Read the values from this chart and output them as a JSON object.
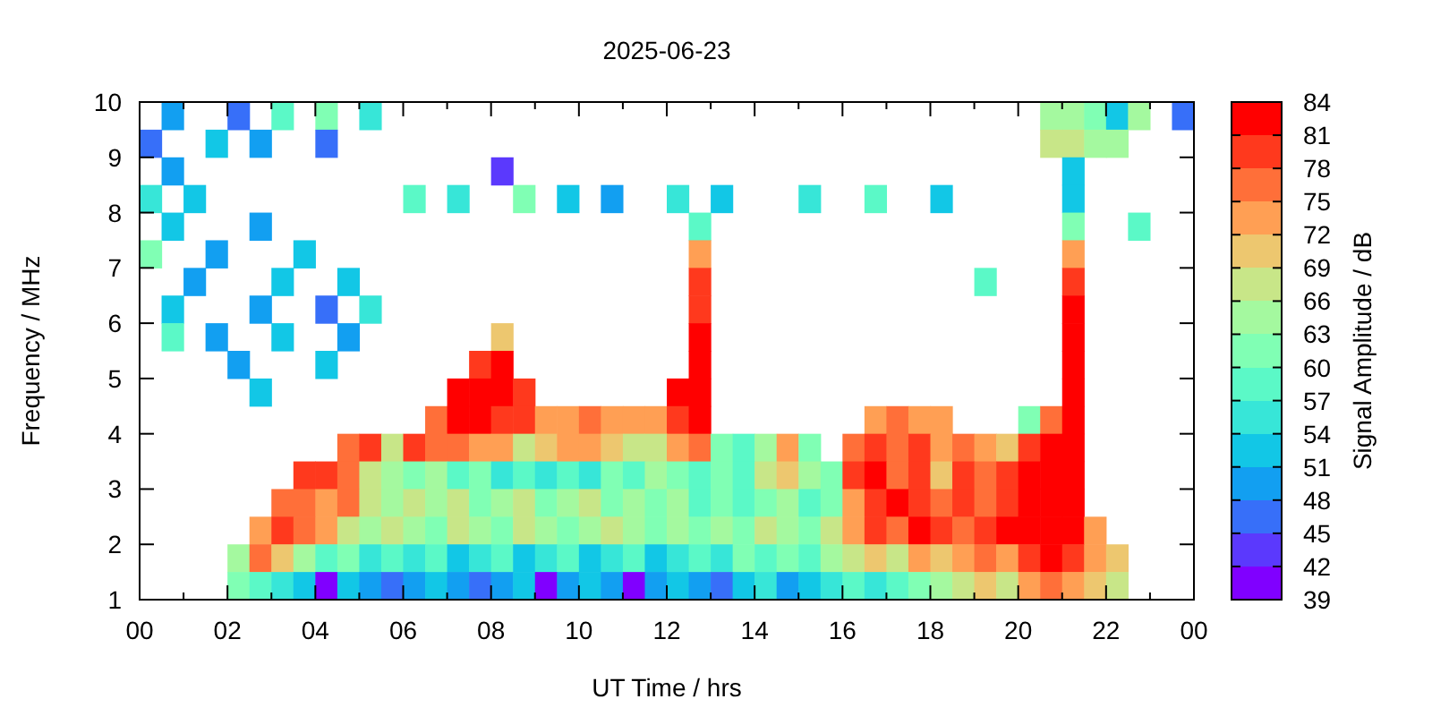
{
  "chart_data": {
    "type": "heatmap",
    "title": "2025-06-23",
    "xlabel": "UT Time / hrs",
    "ylabel": "Frequency / MHz",
    "clabel": "Signal Amplitude / dB",
    "xlim": [
      0,
      24
    ],
    "xticks": [
      {
        "value": 0,
        "label": "00"
      },
      {
        "value": 1,
        "label": null
      },
      {
        "value": 2,
        "label": "02"
      },
      {
        "value": 3,
        "label": null
      },
      {
        "value": 4,
        "label": "04"
      },
      {
        "value": 5,
        "label": null
      },
      {
        "value": 6,
        "label": "06"
      },
      {
        "value": 7,
        "label": null
      },
      {
        "value": 8,
        "label": "08"
      },
      {
        "value": 9,
        "label": null
      },
      {
        "value": 10,
        "label": "10"
      },
      {
        "value": 11,
        "label": null
      },
      {
        "value": 12,
        "label": "12"
      },
      {
        "value": 13,
        "label": null
      },
      {
        "value": 14,
        "label": "14"
      },
      {
        "value": 15,
        "label": null
      },
      {
        "value": 16,
        "label": "16"
      },
      {
        "value": 17,
        "label": null
      },
      {
        "value": 18,
        "label": "18"
      },
      {
        "value": 19,
        "label": null
      },
      {
        "value": 20,
        "label": "20"
      },
      {
        "value": 21,
        "label": null
      },
      {
        "value": 22,
        "label": "22"
      },
      {
        "value": 23,
        "label": null
      },
      {
        "value": 24,
        "label": "00"
      }
    ],
    "ylim": [
      1,
      10
    ],
    "yticks": [
      1,
      2,
      3,
      4,
      5,
      6,
      7,
      8,
      9,
      10
    ],
    "clim": [
      39,
      84
    ],
    "cticks": [
      39,
      42,
      45,
      48,
      51,
      54,
      57,
      60,
      63,
      66,
      69,
      72,
      75,
      78,
      81,
      84
    ],
    "cells": [
      [
        null,
        49.5,
        null,
        null,
        46.5,
        null,
        58.5,
        null,
        61.5,
        null,
        55.5,
        null,
        null,
        null,
        null,
        null,
        null,
        null,
        null,
        null,
        null,
        null,
        null,
        null,
        null,
        null,
        null,
        null,
        null,
        null,
        null,
        null,
        null,
        null,
        null,
        null,
        null,
        null,
        null,
        null,
        null,
        64.5,
        64.5,
        61.5,
        52.5,
        64.5,
        null,
        46.5
      ],
      [
        46.5,
        null,
        null,
        52.5,
        null,
        49.5,
        null,
        null,
        46.5,
        null,
        null,
        null,
        null,
        null,
        null,
        null,
        null,
        null,
        null,
        null,
        null,
        null,
        null,
        null,
        null,
        null,
        null,
        null,
        null,
        null,
        null,
        null,
        null,
        null,
        null,
        null,
        null,
        null,
        null,
        null,
        null,
        67.5,
        67.5,
        64.5,
        64.5,
        null,
        null,
        null
      ],
      [
        null,
        49.5,
        null,
        null,
        null,
        null,
        null,
        null,
        null,
        null,
        null,
        null,
        null,
        null,
        null,
        null,
        43.5,
        null,
        null,
        null,
        null,
        null,
        null,
        null,
        null,
        null,
        null,
        null,
        null,
        null,
        null,
        null,
        null,
        null,
        null,
        null,
        null,
        null,
        null,
        null,
        null,
        null,
        52.5,
        null,
        null,
        null,
        null,
        null
      ],
      [
        55.5,
        null,
        52.5,
        null,
        null,
        null,
        null,
        null,
        null,
        null,
        null,
        null,
        58.5,
        null,
        55.5,
        null,
        null,
        61.5,
        null,
        52.5,
        null,
        49.5,
        null,
        null,
        55.5,
        null,
        52.5,
        null,
        null,
        null,
        55.5,
        null,
        null,
        58.5,
        null,
        null,
        52.5,
        null,
        null,
        null,
        null,
        null,
        52.5,
        null,
        null,
        null,
        null,
        null
      ],
      [
        null,
        52.5,
        null,
        null,
        null,
        49.5,
        null,
        null,
        null,
        null,
        null,
        null,
        null,
        null,
        null,
        null,
        null,
        null,
        null,
        null,
        null,
        null,
        null,
        null,
        null,
        58.5,
        null,
        null,
        null,
        null,
        null,
        null,
        null,
        null,
        null,
        null,
        null,
        null,
        null,
        null,
        null,
        null,
        61.5,
        null,
        null,
        58.5,
        null,
        null
      ],
      [
        61.5,
        null,
        null,
        49.5,
        null,
        null,
        null,
        52.5,
        null,
        null,
        null,
        null,
        null,
        null,
        null,
        null,
        null,
        null,
        null,
        null,
        null,
        null,
        null,
        null,
        null,
        73.5,
        null,
        null,
        null,
        null,
        null,
        null,
        null,
        null,
        null,
        null,
        null,
        null,
        null,
        null,
        null,
        null,
        73.5,
        null,
        null,
        null,
        null,
        null
      ],
      [
        null,
        null,
        49.5,
        null,
        null,
        null,
        52.5,
        null,
        null,
        52.5,
        null,
        null,
        null,
        null,
        null,
        null,
        null,
        null,
        null,
        null,
        null,
        null,
        null,
        null,
        null,
        79.5,
        null,
        null,
        null,
        null,
        null,
        null,
        null,
        null,
        null,
        null,
        null,
        null,
        58.5,
        null,
        null,
        null,
        79.5,
        null,
        null,
        null,
        null,
        null
      ],
      [
        null,
        52.5,
        null,
        null,
        null,
        49.5,
        null,
        null,
        46.5,
        null,
        55.5,
        null,
        null,
        null,
        null,
        null,
        null,
        null,
        null,
        null,
        null,
        null,
        null,
        null,
        null,
        79.5,
        null,
        null,
        null,
        null,
        null,
        null,
        null,
        null,
        null,
        null,
        null,
        null,
        null,
        null,
        null,
        null,
        82.5,
        null,
        null,
        null,
        null,
        null
      ],
      [
        null,
        58.5,
        null,
        49.5,
        null,
        null,
        52.5,
        null,
        null,
        49.5,
        null,
        null,
        null,
        null,
        null,
        null,
        70.5,
        null,
        null,
        null,
        null,
        null,
        null,
        null,
        null,
        82.5,
        null,
        null,
        null,
        null,
        null,
        null,
        null,
        null,
        null,
        null,
        null,
        null,
        null,
        null,
        null,
        null,
        82.5,
        null,
        null,
        null,
        null,
        null
      ],
      [
        null,
        null,
        null,
        null,
        49.5,
        null,
        null,
        null,
        52.5,
        null,
        null,
        null,
        null,
        null,
        null,
        79.5,
        82.5,
        null,
        null,
        null,
        null,
        null,
        null,
        null,
        null,
        82.5,
        null,
        null,
        null,
        null,
        null,
        null,
        null,
        null,
        null,
        null,
        null,
        null,
        null,
        null,
        null,
        null,
        82.5,
        null,
        null,
        null,
        null,
        null
      ],
      [
        null,
        null,
        null,
        null,
        null,
        52.5,
        null,
        null,
        null,
        null,
        null,
        null,
        null,
        null,
        82.5,
        82.5,
        82.5,
        79.5,
        null,
        null,
        null,
        null,
        null,
        null,
        82.5,
        82.5,
        null,
        null,
        null,
        null,
        null,
        null,
        null,
        null,
        null,
        null,
        null,
        null,
        null,
        null,
        null,
        null,
        82.5,
        null,
        null,
        null,
        null,
        null
      ],
      [
        null,
        null,
        null,
        null,
        null,
        null,
        null,
        null,
        null,
        null,
        null,
        null,
        null,
        76.5,
        82.5,
        82.5,
        79.5,
        79.5,
        73.5,
        73.5,
        76.5,
        73.5,
        73.5,
        73.5,
        79.5,
        82.5,
        null,
        null,
        null,
        null,
        null,
        null,
        null,
        73.5,
        76.5,
        73.5,
        73.5,
        null,
        null,
        null,
        61.5,
        76.5,
        82.5,
        null,
        null,
        null,
        null,
        null
      ],
      [
        null,
        null,
        null,
        null,
        null,
        null,
        null,
        null,
        null,
        76.5,
        79.5,
        67.5,
        79.5,
        76.5,
        76.5,
        73.5,
        73.5,
        67.5,
        70.5,
        73.5,
        73.5,
        70.5,
        67.5,
        67.5,
        73.5,
        76.5,
        61.5,
        58.5,
        64.5,
        73.5,
        61.5,
        null,
        76.5,
        79.5,
        76.5,
        79.5,
        73.5,
        76.5,
        73.5,
        70.5,
        79.5,
        82.5,
        82.5,
        null,
        null,
        null,
        null,
        null
      ],
      [
        null,
        null,
        null,
        null,
        null,
        null,
        null,
        79.5,
        79.5,
        76.5,
        67.5,
        64.5,
        61.5,
        64.5,
        58.5,
        61.5,
        55.5,
        58.5,
        55.5,
        58.5,
        55.5,
        61.5,
        58.5,
        64.5,
        61.5,
        58.5,
        61.5,
        58.5,
        67.5,
        70.5,
        64.5,
        61.5,
        79.5,
        82.5,
        76.5,
        79.5,
        70.5,
        79.5,
        76.5,
        79.5,
        82.5,
        82.5,
        82.5,
        null,
        null,
        null,
        null,
        null
      ],
      [
        null,
        null,
        null,
        null,
        null,
        null,
        76.5,
        76.5,
        73.5,
        76.5,
        67.5,
        64.5,
        67.5,
        64.5,
        67.5,
        61.5,
        64.5,
        67.5,
        61.5,
        64.5,
        67.5,
        61.5,
        64.5,
        61.5,
        64.5,
        58.5,
        61.5,
        58.5,
        61.5,
        64.5,
        58.5,
        61.5,
        73.5,
        79.5,
        82.5,
        79.5,
        76.5,
        79.5,
        76.5,
        79.5,
        82.5,
        82.5,
        82.5,
        null,
        null,
        null,
        null,
        null
      ],
      [
        null,
        null,
        null,
        null,
        null,
        73.5,
        79.5,
        76.5,
        73.5,
        67.5,
        64.5,
        67.5,
        64.5,
        61.5,
        67.5,
        64.5,
        61.5,
        67.5,
        64.5,
        61.5,
        64.5,
        67.5,
        64.5,
        61.5,
        64.5,
        61.5,
        64.5,
        61.5,
        67.5,
        64.5,
        61.5,
        67.5,
        73.5,
        79.5,
        76.5,
        82.5,
        79.5,
        76.5,
        79.5,
        82.5,
        82.5,
        82.5,
        82.5,
        73.5,
        null,
        null,
        null,
        null
      ],
      [
        null,
        null,
        null,
        null,
        64.5,
        76.5,
        70.5,
        64.5,
        58.5,
        61.5,
        55.5,
        58.5,
        55.5,
        58.5,
        52.5,
        55.5,
        58.5,
        52.5,
        55.5,
        58.5,
        52.5,
        55.5,
        58.5,
        52.5,
        55.5,
        58.5,
        55.5,
        61.5,
        58.5,
        61.5,
        58.5,
        64.5,
        67.5,
        70.5,
        67.5,
        73.5,
        70.5,
        73.5,
        76.5,
        73.5,
        79.5,
        82.5,
        79.5,
        73.5,
        70.5,
        null,
        null,
        null
      ],
      [
        null,
        null,
        null,
        null,
        61.5,
        58.5,
        55.5,
        52.5,
        40.5,
        52.5,
        49.5,
        46.5,
        49.5,
        52.5,
        49.5,
        46.5,
        49.5,
        52.5,
        40.5,
        49.5,
        52.5,
        49.5,
        40.5,
        49.5,
        52.5,
        49.5,
        46.5,
        52.5,
        55.5,
        49.5,
        52.5,
        55.5,
        58.5,
        55.5,
        58.5,
        61.5,
        64.5,
        67.5,
        70.5,
        67.5,
        73.5,
        76.5,
        73.5,
        70.5,
        67.5,
        null,
        null,
        null
      ]
    ]
  }
}
